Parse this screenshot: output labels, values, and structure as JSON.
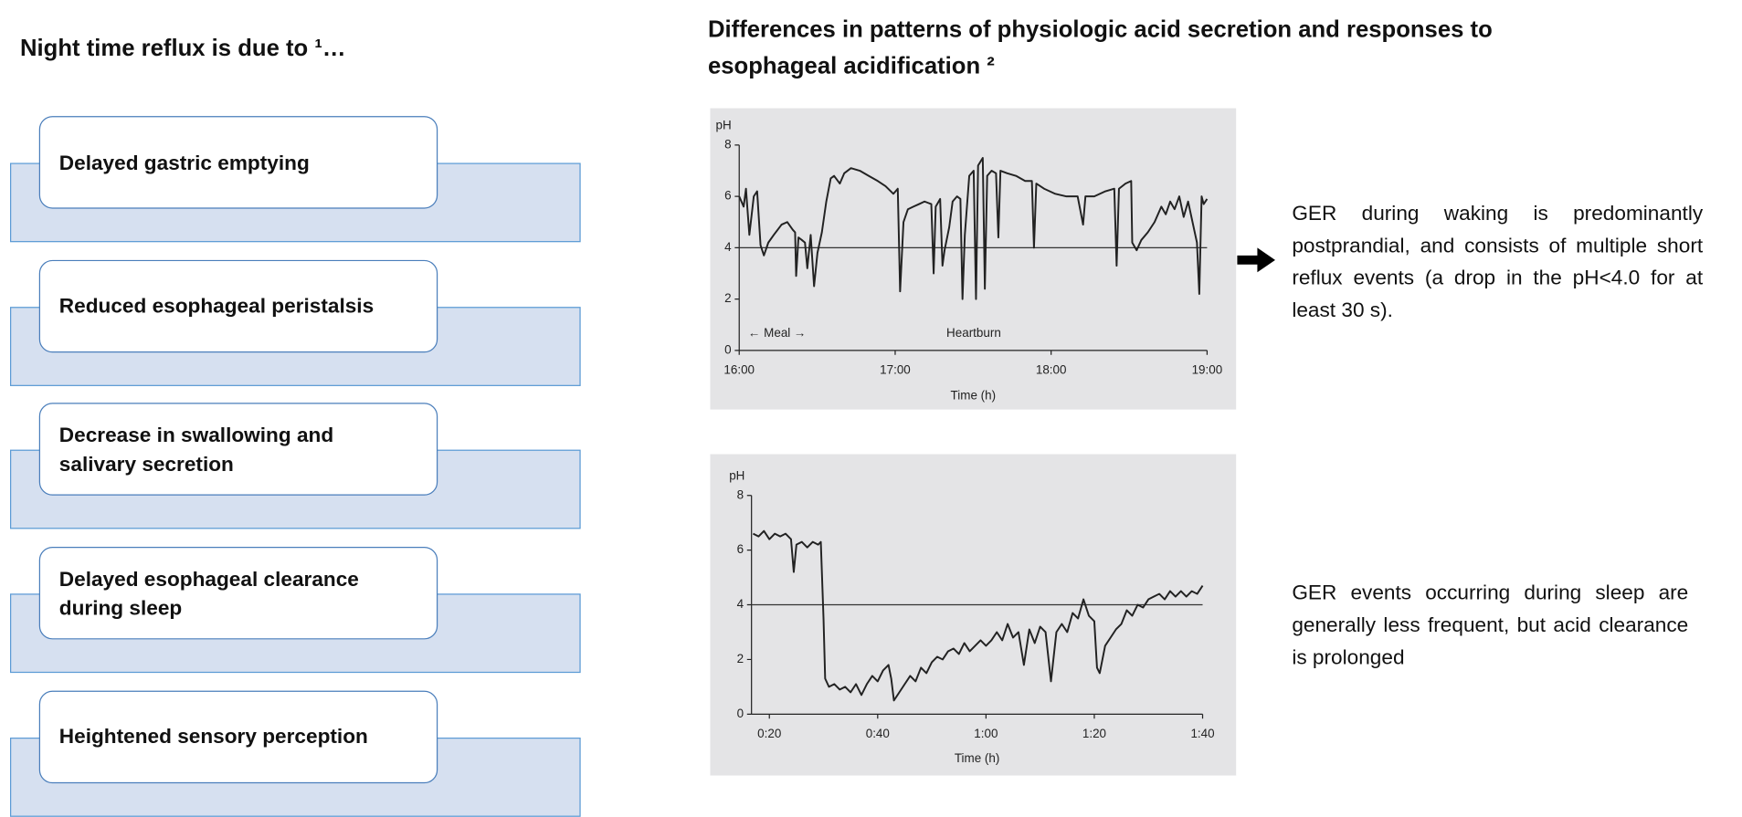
{
  "left": {
    "title": "Night time reflux is due to ¹…",
    "items": [
      "Delayed gastric emptying",
      "Reduced esophageal peristalsis",
      "Decrease in swallowing and salivary secretion",
      "Delayed esophageal clearance during sleep",
      "Heightened sensory perception"
    ]
  },
  "right": {
    "title": "Differences in patterns of physiologic acid secretion and responses to esophageal acidification ²",
    "notes": [
      "GER during waking is predominantly postprandial, and consists of multiple short reflux events (a drop in the pH<4.0 for at least 30 s).",
      "GER events occurring during sleep are generally less frequent, but acid clearance is prolonged"
    ]
  },
  "chart_data": [
    {
      "type": "line",
      "y_label": "pH",
      "x_label": "Time (h)",
      "annotations": [
        "← Meal →",
        "Heartburn"
      ],
      "color": "#222222",
      "reference_line": 4,
      "xlim": [
        960,
        1140
      ],
      "ylim": [
        0,
        8
      ],
      "xticks": [
        {
          "value": 960,
          "label": "16:00"
        },
        {
          "value": 1020,
          "label": "17:00"
        },
        {
          "value": 1080,
          "label": "18:00"
        },
        {
          "value": 1140,
          "label": "19:00"
        }
      ],
      "yticks": [
        0,
        2,
        4,
        6,
        8
      ],
      "x": [
        960,
        961.7,
        962.6,
        963.9,
        965.6,
        966.9,
        968.2,
        969.5,
        971.2,
        973.3,
        976.3,
        978.5,
        980.6,
        981.5,
        981.9,
        982.8,
        984.1,
        985.3,
        986.2,
        987.5,
        988.8,
        990.1,
        991.8,
        993.5,
        995.2,
        996.5,
        998.7,
        1000.4,
        1003.0,
        1006.4,
        1009.8,
        1013.3,
        1016.3,
        1019.3,
        1021.0,
        1021.9,
        1023.2,
        1024.9,
        1027.0,
        1029.2,
        1031.3,
        1033.9,
        1034.8,
        1035.6,
        1037.3,
        1038.2,
        1039.0,
        1040.8,
        1042.1,
        1043.8,
        1045.1,
        1045.9,
        1046.8,
        1048.5,
        1050.2,
        1051.1,
        1051.9,
        1053.7,
        1054.5,
        1055.4,
        1057.1,
        1058.8,
        1059.7,
        1060.5,
        1063.1,
        1066.5,
        1070.0,
        1072.6,
        1073.4,
        1074.3,
        1077.3,
        1081.6,
        1085.9,
        1090.2,
        1092.3,
        1093.2,
        1096.6,
        1100.9,
        1104.3,
        1105.2,
        1106.1,
        1108.6,
        1110.8,
        1111.2,
        1112.9,
        1114.7,
        1117.2,
        1119.8,
        1122.4,
        1124.1,
        1125.8,
        1127.5,
        1129.3,
        1131.0,
        1132.7,
        1134.4,
        1136.1,
        1137.0,
        1137.9,
        1138.7,
        1140.0
      ],
      "values": [
        6.0,
        5.6,
        6.3,
        4.5,
        6.0,
        6.2,
        4.1,
        3.7,
        4.2,
        4.5,
        4.9,
        5.0,
        4.7,
        4.6,
        2.9,
        4.4,
        4.3,
        4.2,
        3.2,
        4.5,
        2.5,
        3.8,
        4.6,
        5.8,
        6.7,
        6.8,
        6.5,
        6.9,
        7.1,
        7.0,
        6.8,
        6.6,
        6.4,
        6.1,
        6.3,
        2.3,
        5.0,
        5.5,
        5.6,
        5.7,
        5.8,
        5.7,
        3.0,
        5.6,
        5.9,
        3.3,
        3.9,
        4.8,
        5.8,
        6.0,
        5.9,
        2.0,
        4.5,
        6.8,
        7.0,
        2.0,
        7.2,
        7.5,
        2.4,
        6.8,
        7.0,
        6.9,
        4.4,
        7.0,
        6.9,
        6.8,
        6.6,
        6.6,
        4.0,
        6.5,
        6.3,
        6.1,
        6.0,
        6.0,
        4.9,
        6.0,
        6.0,
        6.2,
        6.3,
        3.3,
        6.3,
        6.5,
        6.6,
        4.2,
        3.9,
        4.3,
        4.6,
        5.0,
        5.6,
        5.3,
        5.8,
        5.5,
        6.0,
        5.2,
        5.8,
        5.0,
        4.2,
        2.2,
        6.0,
        5.7,
        5.9
      ]
    },
    {
      "type": "line",
      "y_label": "pH",
      "x_label": "Time (h)",
      "color": "#222222",
      "reference_line": 4,
      "xlim": [
        16.7,
        100
      ],
      "ylim": [
        0,
        8
      ],
      "xticks": [
        {
          "value": 20,
          "label": "0:20"
        },
        {
          "value": 40,
          "label": "0:40"
        },
        {
          "value": 60,
          "label": "1:00"
        },
        {
          "value": 80,
          "label": "1:20"
        },
        {
          "value": 100,
          "label": "1:40"
        }
      ],
      "yticks": [
        0,
        2,
        4,
        6,
        8
      ],
      "x": [
        17,
        18,
        19,
        20,
        21,
        22,
        23,
        24,
        24.5,
        25,
        26,
        27,
        28,
        29,
        29.5,
        30,
        30.3,
        31,
        32,
        33,
        34,
        35,
        36,
        37,
        38,
        39,
        40,
        41,
        42,
        42.5,
        43,
        44,
        45,
        46,
        47,
        48,
        49,
        50,
        51,
        52,
        53,
        54,
        55,
        56,
        57,
        58,
        59,
        60,
        61,
        62,
        63,
        64,
        65,
        66,
        67,
        68,
        69,
        70,
        71,
        72,
        73,
        74,
        75,
        76,
        77,
        78,
        79,
        80,
        80.5,
        81,
        82,
        83,
        84,
        85,
        86,
        87,
        88,
        89,
        90,
        91,
        92,
        93,
        94,
        95,
        96,
        97,
        98,
        99,
        100
      ],
      "values": [
        6.6,
        6.5,
        6.7,
        6.4,
        6.6,
        6.5,
        6.6,
        6.4,
        5.2,
        6.2,
        6.3,
        6.1,
        6.3,
        6.2,
        6.3,
        3.5,
        1.3,
        1.0,
        1.1,
        0.9,
        1.0,
        0.8,
        1.1,
        0.7,
        1.1,
        1.4,
        1.2,
        1.6,
        1.8,
        1.3,
        0.5,
        0.8,
        1.1,
        1.4,
        1.2,
        1.7,
        1.5,
        1.9,
        2.1,
        2.0,
        2.3,
        2.4,
        2.2,
        2.6,
        2.3,
        2.5,
        2.7,
        2.5,
        2.7,
        3.0,
        2.7,
        3.3,
        2.8,
        3.0,
        1.8,
        3.1,
        2.6,
        3.2,
        3.0,
        1.2,
        3.0,
        3.3,
        3.0,
        3.7,
        3.5,
        4.2,
        3.6,
        3.4,
        1.7,
        1.5,
        2.5,
        2.8,
        3.1,
        3.3,
        3.8,
        3.6,
        4.0,
        3.9,
        4.2,
        4.3,
        4.4,
        4.2,
        4.5,
        4.3,
        4.5,
        4.3,
        4.5,
        4.4,
        4.7
      ]
    }
  ]
}
